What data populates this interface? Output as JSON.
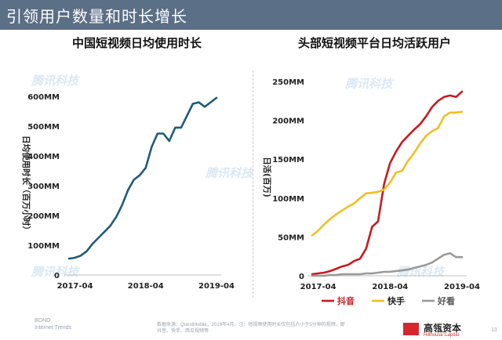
{
  "header": {
    "title": "引领用户数量和时长增长"
  },
  "watermark": "腾讯科技",
  "footer": {
    "left_brand": "BOND",
    "left_sub": "Internet Trends",
    "source": "数据来源：QuestMobile，2019年4月。注：短视频使用时长仅包括六小于5分钟的视频，即抖音、快手、西瓜视频等",
    "logo_name": "高瓴资本",
    "logo_sub": "Hillhouse Capital",
    "page_number": "13"
  },
  "chart_data": [
    {
      "type": "line",
      "title": "中国短视频日均使用时长",
      "ylabel": "日均使用时长（百万小时）",
      "ylim": [
        0,
        600
      ],
      "yticks": [
        "0",
        "100MM",
        "200MM",
        "300MM",
        "400MM",
        "500MM",
        "600MM"
      ],
      "x_ticks": [
        "2017-04",
        "2018-04",
        "2019-04"
      ],
      "x": [
        "2017-03",
        "2017-04",
        "2017-05",
        "2017-06",
        "2017-07",
        "2017-08",
        "2017-09",
        "2017-10",
        "2017-11",
        "2017-12",
        "2018-01",
        "2018-02",
        "2018-03",
        "2018-04",
        "2018-05",
        "2018-06",
        "2018-07",
        "2018-08",
        "2018-09",
        "2018-10",
        "2018-11",
        "2018-12",
        "2019-01",
        "2019-02",
        "2019-03",
        "2019-04"
      ],
      "series": [
        {
          "color": "#1f5b7a",
          "values": [
            55,
            58,
            65,
            80,
            105,
            125,
            145,
            165,
            195,
            235,
            285,
            320,
            335,
            360,
            430,
            475,
            475,
            450,
            495,
            495,
            535,
            575,
            580,
            565,
            580,
            595
          ]
        }
      ]
    },
    {
      "type": "line",
      "title": "头部短视频平台日均活跃用户",
      "ylabel": "日活(百万)",
      "ylim": [
        0,
        250
      ],
      "yticks": [
        "0",
        "50MM",
        "100MM",
        "150MM",
        "200MM",
        "250MM"
      ],
      "x_ticks": [
        "2017-04",
        "2018-04",
        "2019-04"
      ],
      "x": [
        "2017-03",
        "2017-04",
        "2017-05",
        "2017-06",
        "2017-07",
        "2017-08",
        "2017-09",
        "2017-10",
        "2017-11",
        "2017-12",
        "2018-01",
        "2018-02",
        "2018-03",
        "2018-04",
        "2018-05",
        "2018-06",
        "2018-07",
        "2018-08",
        "2018-09",
        "2018-10",
        "2018-11",
        "2018-12",
        "2019-01",
        "2019-02",
        "2019-03",
        "2019-04"
      ],
      "series": [
        {
          "name": "抖音",
          "color": "#c8191f",
          "values": [
            2,
            3,
            4,
            6,
            9,
            12,
            14,
            19,
            22,
            35,
            63,
            70,
            118,
            145,
            160,
            172,
            180,
            188,
            195,
            205,
            217,
            225,
            230,
            232,
            230,
            237
          ]
        },
        {
          "name": "快手",
          "color": "#f0c020",
          "values": [
            52,
            58,
            66,
            73,
            79,
            84,
            89,
            93,
            100,
            106,
            107,
            108,
            111,
            120,
            133,
            135,
            148,
            158,
            170,
            180,
            186,
            190,
            205,
            210,
            210,
            211
          ]
        },
        {
          "name": "好看",
          "color": "#9a9a9a",
          "values": [
            0,
            0,
            0,
            1,
            1,
            2,
            2,
            2,
            2,
            3,
            3,
            4,
            5,
            5,
            6,
            7,
            8,
            10,
            12,
            14,
            17,
            22,
            27,
            29,
            24,
            24
          ]
        }
      ],
      "legend": "bottom"
    }
  ]
}
